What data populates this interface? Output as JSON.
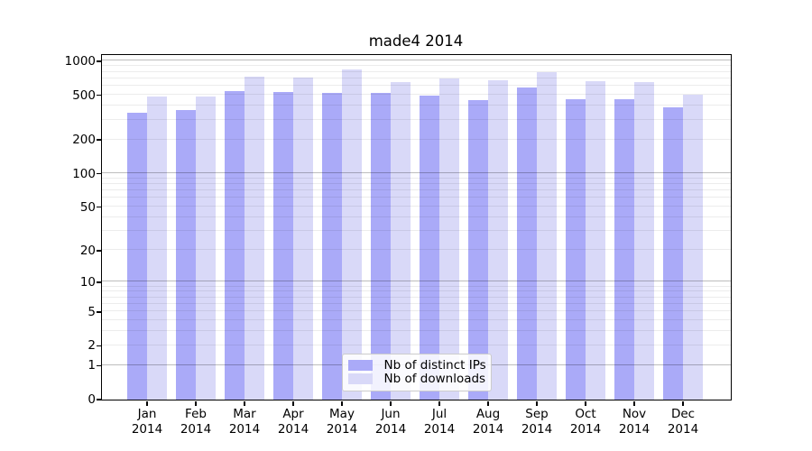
{
  "title": "made4 2014",
  "colors": {
    "distinct_ips_bar": "#aaaaf8",
    "downloads_bar": "#d9d9f8",
    "grid_minor": "rgba(0,0,0,0.075)",
    "grid_major": "rgba(0,0,0,0.26)",
    "axis_spine": "#000000",
    "legend_border": "#cccccc"
  },
  "legend": {
    "position": "lower-center",
    "items": [
      {
        "label": "Nb of distinct IPs",
        "swatch_color": "#aaaaf8"
      },
      {
        "label": "Nb of downloads",
        "swatch_color": "#d9d9f8"
      }
    ]
  },
  "chart_data": {
    "type": "bar",
    "title": "made4 2014",
    "categories": [
      "Jan 2014",
      "Feb 2014",
      "Mar 2014",
      "Apr 2014",
      "May 2014",
      "Jun 2014",
      "Jul 2014",
      "Aug 2014",
      "Sep 2014",
      "Oct 2014",
      "Nov 2014",
      "Dec 2014"
    ],
    "series": [
      {
        "name": "Nb of distinct IPs",
        "color": "#aaaaf8",
        "values": [
          345,
          365,
          535,
          525,
          520,
          520,
          490,
          450,
          575,
          455,
          460,
          390
        ]
      },
      {
        "name": "Nb of downloads",
        "color": "#d9d9f8",
        "values": [
          480,
          485,
          730,
          710,
          845,
          645,
          700,
          670,
          795,
          660,
          650,
          505
        ]
      }
    ],
    "xlabel": "",
    "ylabel": "",
    "yscale": "log10(value+1)",
    "yticks": [
      1000,
      500,
      200,
      100,
      50,
      20,
      10,
      5,
      2,
      1,
      0
    ],
    "ylim": [
      0,
      1150
    ],
    "grid": "horizontal, minor 2-9 per decade, major at 1,10,100,1000",
    "legend_position": "lower-center"
  }
}
